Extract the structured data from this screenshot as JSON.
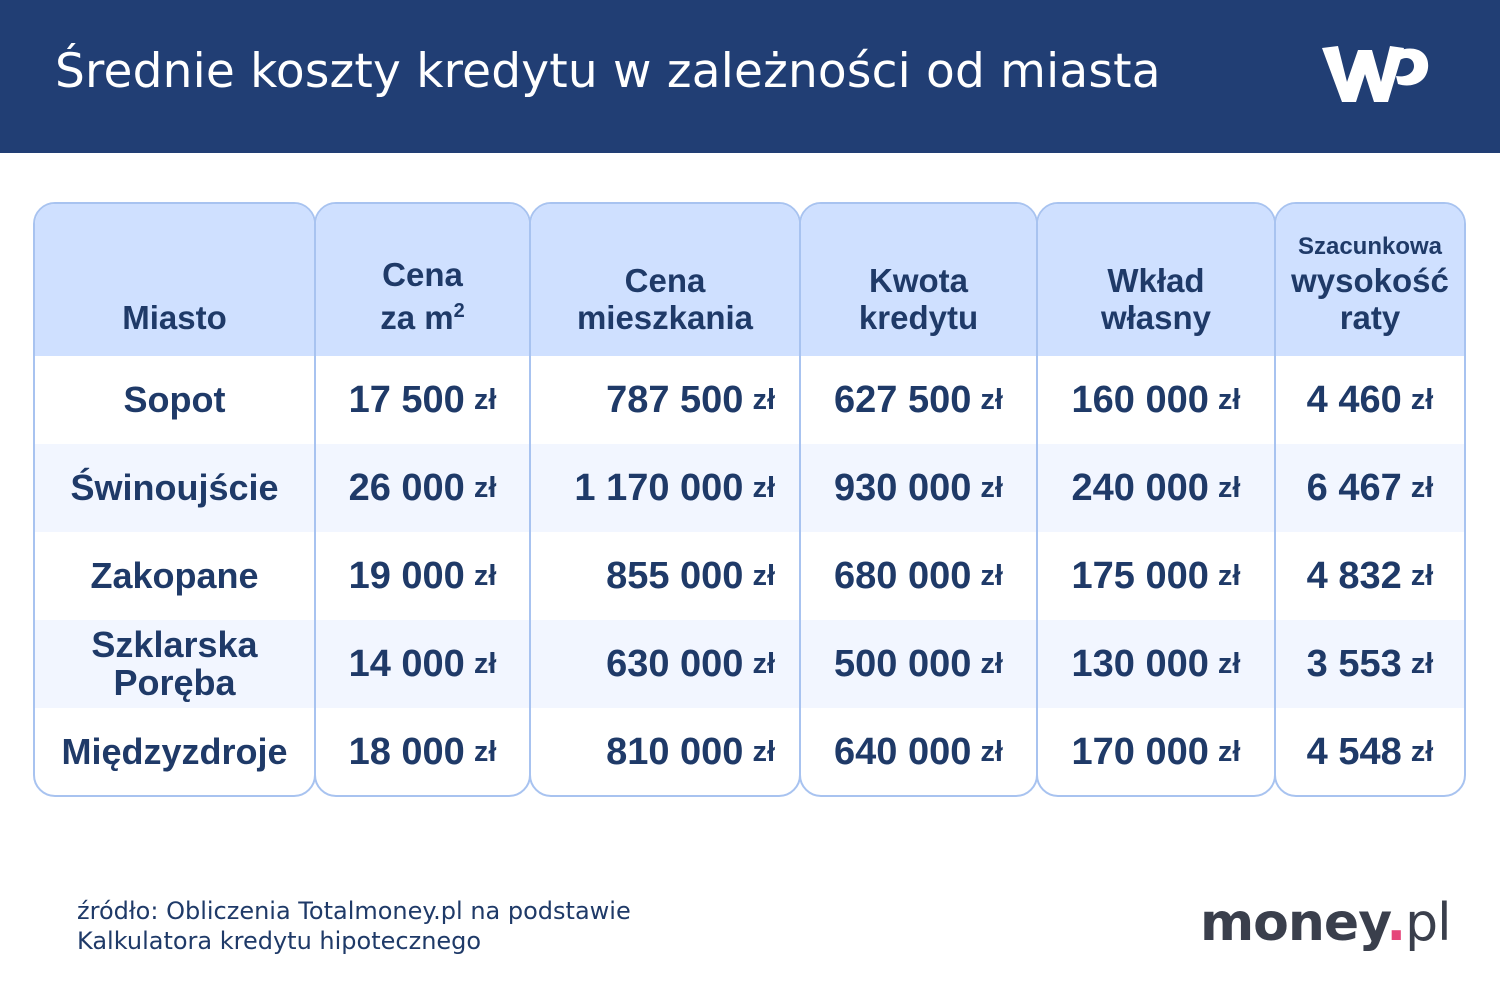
{
  "header": {
    "title": "Średnie koszty kredytu w zależności od miasta",
    "logo_text": "WP"
  },
  "chart_data": {
    "type": "table",
    "columns": [
      {
        "label": "Miasto"
      },
      {
        "label": "Cena",
        "label2": "za m",
        "sup": "2"
      },
      {
        "label": "Cena",
        "label2": "mieszkania"
      },
      {
        "label": "Kwota",
        "label2": "kredytu"
      },
      {
        "label": "Wkład",
        "label2": "własny"
      },
      {
        "label_small": "Szacunkowa",
        "label": "wysokość",
        "label2": "raty"
      }
    ],
    "unit": "zł",
    "rows": [
      {
        "city": "Sopot",
        "values": [
          "17 500",
          "787 500",
          "627 500",
          "160 000",
          "4 460"
        ]
      },
      {
        "city": "Świnoujście",
        "values": [
          "26 000",
          "1 170 000",
          "930 000",
          "240 000",
          "6 467"
        ]
      },
      {
        "city": "Zakopane",
        "values": [
          "19 000",
          "855 000",
          "680 000",
          "175 000",
          "4 832"
        ]
      },
      {
        "city": "Szklarska Poręba",
        "values": [
          "14 000",
          "630 000",
          "500 000",
          "130 000",
          "3 553"
        ]
      },
      {
        "city": "Międzyzdroje",
        "values": [
          "18 000",
          "810 000",
          "640 000",
          "170 000",
          "4 548"
        ]
      }
    ]
  },
  "footer": {
    "source_line1": "źródło: Obliczenia Totalmoney.pl na podstawie",
    "source_line2": "Kalkulatora kredytu hipotecznego",
    "brand_main": "money",
    "brand_dot": ".",
    "brand_tld": "pl"
  },
  "colors": {
    "header_bg": "#213e74",
    "text": "#1f3a68",
    "table_head_bg": "#cfe0ff",
    "table_border": "#a8c3f0",
    "row_alt_bg": "#f2f6ff",
    "brand_dot": "#e5457a"
  }
}
